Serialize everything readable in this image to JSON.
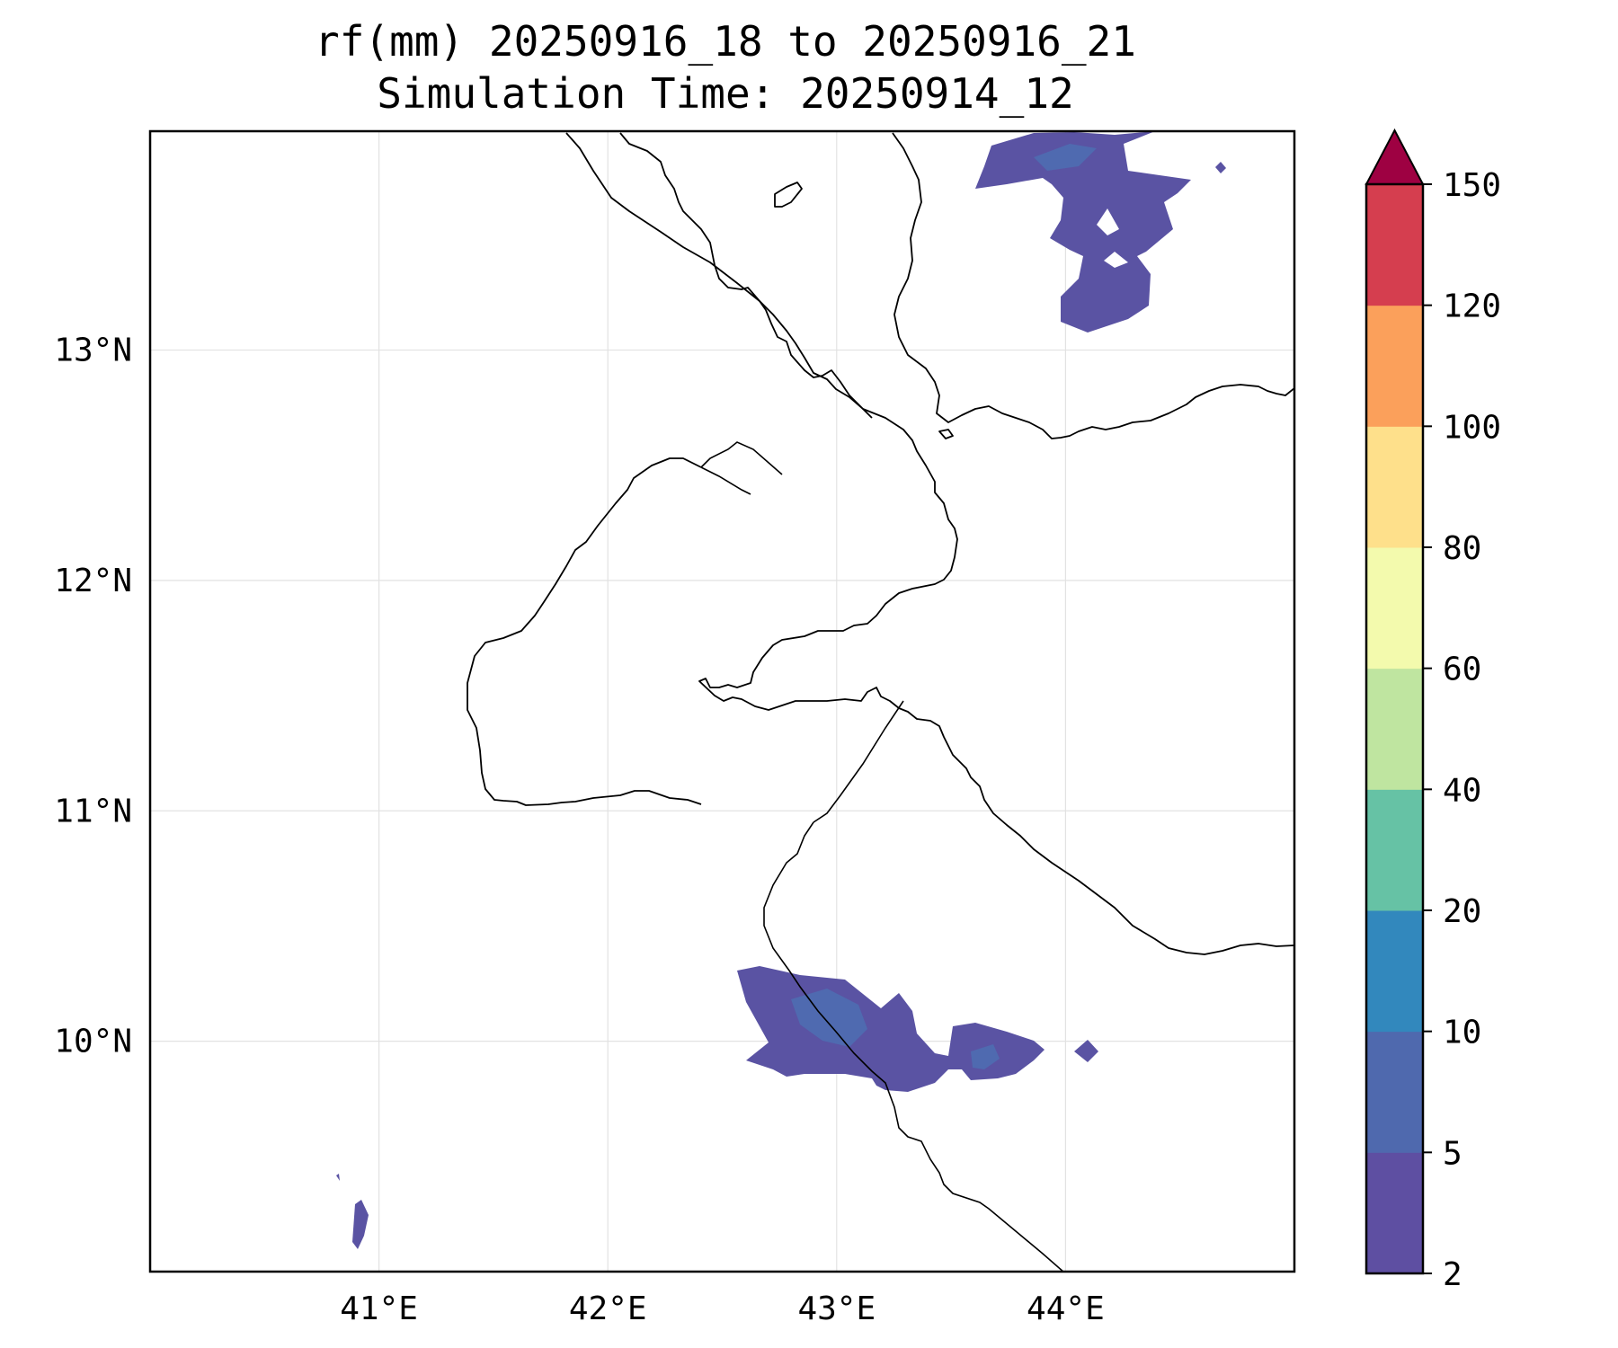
{
  "title": {
    "line1": "rf(mm) 20250916_18 to 20250916_21",
    "line2": "Simulation Time: 20250914_12"
  },
  "map": {
    "lon_range": [
      40.0,
      45.0
    ],
    "lat_range": [
      9.0,
      13.95
    ],
    "lon_ticks": [
      {
        "value": 41,
        "label": "41°E"
      },
      {
        "value": 42,
        "label": "42°E"
      },
      {
        "value": 43,
        "label": "43°E"
      },
      {
        "value": 44,
        "label": "44°E"
      }
    ],
    "lat_ticks": [
      {
        "value": 10,
        "label": "10°N"
      },
      {
        "value": 11,
        "label": "11°N"
      },
      {
        "value": 12,
        "label": "12°N"
      },
      {
        "value": 13,
        "label": "13°N"
      }
    ],
    "grid": true
  },
  "colorbar": {
    "levels": [
      2,
      5,
      10,
      20,
      40,
      60,
      80,
      100,
      120,
      150
    ],
    "labels": [
      "2",
      "5",
      "10",
      "20",
      "40",
      "60",
      "80",
      "100",
      "120",
      "150"
    ],
    "colors": [
      "#5e4fa2",
      "#4f69ae",
      "#3288bd",
      "#66c2a5",
      "#bfe5a0",
      "#f3faad",
      "#fee08b",
      "#fba05b",
      "#d53e4f"
    ],
    "extend_color": "#9e0142",
    "extend": "max"
  },
  "rain_colors": {
    "light": "#5a53a3",
    "medium": "#4f6ab0"
  }
}
